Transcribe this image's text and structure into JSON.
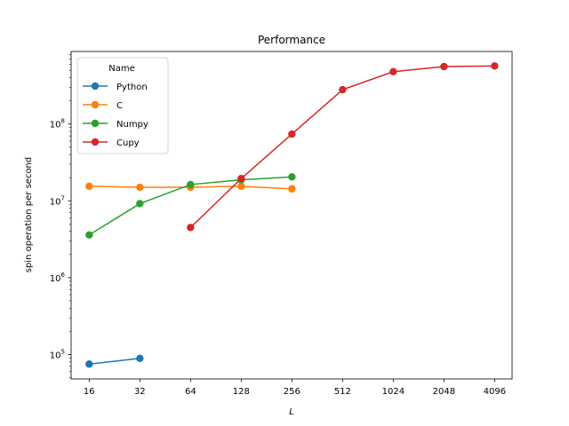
{
  "chart_data": {
    "type": "line",
    "title": "Performance",
    "xlabel": "L",
    "ylabel": "spin operation per second",
    "xscale": "log2",
    "yscale": "log",
    "x_ticks": [
      16,
      32,
      64,
      128,
      256,
      512,
      1024,
      2048,
      4096
    ],
    "x_tick_labels": [
      "16",
      "32",
      "64",
      "128",
      "256",
      "512",
      "1024",
      "2048",
      "4096"
    ],
    "y_ticks": [
      100000,
      1000000,
      10000000,
      100000000
    ],
    "y_tick_labels": [
      {
        "base": "10",
        "exp": "5"
      },
      {
        "base": "10",
        "exp": "6"
      },
      {
        "base": "10",
        "exp": "7"
      },
      {
        "base": "10",
        "exp": "8"
      }
    ],
    "ylim": [
      48000,
      880000000
    ],
    "xlim": [
      12.5,
      5200
    ],
    "grid": false,
    "legend": {
      "title": "Name",
      "placement": "top-left"
    },
    "series": [
      {
        "name": "Python",
        "color": "#1f77b4",
        "x": [
          16,
          32
        ],
        "y": [
          75000,
          89000
        ]
      },
      {
        "name": "C",
        "color": "#ff7f0e",
        "x": [
          16,
          32,
          64,
          128,
          256
        ],
        "y": [
          15500000,
          15000000,
          15000000,
          15500000,
          14300000
        ]
      },
      {
        "name": "Numpy",
        "color": "#2ca02c",
        "x": [
          16,
          32,
          64,
          128,
          256
        ],
        "y": [
          3600000,
          9200000,
          16300000,
          18800000,
          20500000
        ]
      },
      {
        "name": "Cupy",
        "color": "#d62728",
        "x": [
          64,
          128,
          256,
          512,
          1024,
          2048,
          4096
        ],
        "y": [
          4500000,
          19500000,
          74000000,
          280000000,
          480000000,
          560000000,
          570000000
        ]
      }
    ]
  }
}
